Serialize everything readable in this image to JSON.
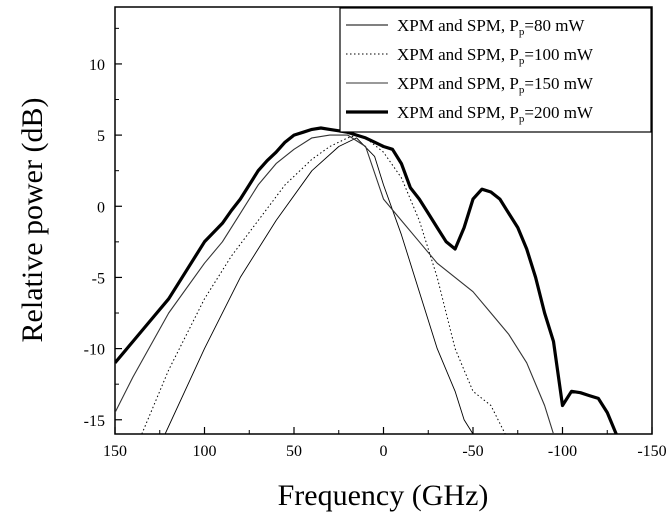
{
  "chart_data": {
    "type": "line",
    "title": "",
    "xlabel": "Frequency (GHz)",
    "ylabel": "Relative power (dB)",
    "xlim": [
      150,
      -150
    ],
    "ylim": [
      -16,
      14
    ],
    "x_reversed": true,
    "xticks": [
      150,
      100,
      50,
      0,
      -50,
      -100,
      -150
    ],
    "yticks": [
      10,
      5,
      0,
      -5,
      -10,
      -15
    ],
    "grid": false,
    "legend_position": "top-right",
    "series": [
      {
        "name": "XPM and SPM, P",
        "name_sub": "p",
        "name_suffix": "=80 mW",
        "style": "thin-solid",
        "color": "#000000",
        "x": [
          122,
          100,
          80,
          60,
          40,
          25,
          15,
          5,
          0,
          -10,
          -20,
          -30,
          -40,
          -45,
          -50
        ],
        "y": [
          -16,
          -10,
          -5,
          -1,
          2.5,
          4.2,
          4.8,
          3.5,
          1.5,
          -2,
          -6,
          -10,
          -13,
          -15,
          -16
        ]
      },
      {
        "name": "XPM and SPM, P",
        "name_sub": "p",
        "name_suffix": "=100 mW",
        "style": "dotted",
        "color": "#000000",
        "x": [
          135,
          120,
          100,
          85,
          70,
          55,
          40,
          30,
          20,
          15,
          10,
          5,
          0,
          -10,
          -20,
          -30,
          -40,
          -50,
          -60,
          -68
        ],
        "y": [
          -16,
          -11.5,
          -6.5,
          -3.5,
          -1,
          1.5,
          3.3,
          4.2,
          4.8,
          5,
          4.8,
          4.3,
          3.8,
          2,
          -1,
          -5,
          -10,
          -13,
          -14,
          -16
        ]
      },
      {
        "name": "XPM and SPM, P",
        "name_sub": "p",
        "name_suffix": "=150 mW",
        "style": "solid",
        "color": "#333333",
        "x": [
          150,
          140,
          120,
          100,
          90,
          80,
          70,
          60,
          50,
          40,
          30,
          20,
          10,
          0,
          -10,
          -20,
          -30,
          -40,
          -50,
          -60,
          -70,
          -80,
          -90,
          -95
        ],
        "y": [
          -14.5,
          -12,
          -7.5,
          -4,
          -2.5,
          -0.5,
          1.5,
          3,
          4,
          4.8,
          5,
          5,
          4.2,
          0.5,
          -1,
          -2.5,
          -4,
          -5,
          -6,
          -7.5,
          -9,
          -11,
          -14,
          -16
        ]
      },
      {
        "name": "XPM and SPM, P",
        "name_sub": "p",
        "name_suffix": "=200 mW",
        "style": "thick-solid",
        "color": "#000000",
        "x": [
          150,
          140,
          130,
          120,
          110,
          100,
          90,
          85,
          80,
          75,
          70,
          65,
          60,
          55,
          50,
          45,
          40,
          35,
          30,
          25,
          20,
          15,
          10,
          5,
          0,
          -5,
          -10,
          -15,
          -20,
          -25,
          -30,
          -35,
          -40,
          -45,
          -50,
          -55,
          -60,
          -65,
          -70,
          -75,
          -80,
          -85,
          -90,
          -95,
          -100,
          -105,
          -110,
          -115,
          -120,
          -125,
          -130
        ],
        "y": [
          -11,
          -9.5,
          -8,
          -6.5,
          -4.5,
          -2.5,
          -1.2,
          -0.3,
          0.5,
          1.5,
          2.5,
          3.2,
          3.8,
          4.5,
          5,
          5.2,
          5.4,
          5.5,
          5.4,
          5.3,
          5.2,
          5,
          4.8,
          4.5,
          4.2,
          4,
          3,
          1.3,
          0.5,
          -0.5,
          -1.5,
          -2.5,
          -3,
          -1.5,
          0.5,
          1.2,
          1,
          0.5,
          -0.5,
          -1.5,
          -3,
          -5,
          -7.5,
          -9.5,
          -14,
          -13,
          -13.1,
          -13.3,
          -13.5,
          -14.5,
          -16
        ]
      }
    ]
  }
}
